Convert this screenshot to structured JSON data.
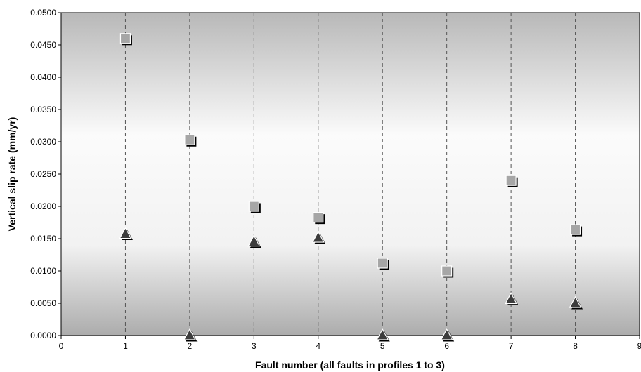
{
  "chart_data": {
    "type": "scatter",
    "title": "",
    "xlabel": "Fault number (all faults in profiles 1 to 3)",
    "ylabel": "Vertical slip rate (mm/yr)",
    "xlim": [
      0,
      9
    ],
    "ylim": [
      0,
      0.05
    ],
    "x_ticks": [
      "0",
      "1",
      "2",
      "3",
      "4",
      "5",
      "6",
      "7",
      "8",
      "9"
    ],
    "y_ticks": [
      "0.0000",
      "0.0050",
      "0.0100",
      "0.0150",
      "0.0200",
      "0.0250",
      "0.0300",
      "0.0350",
      "0.0400",
      "0.0450",
      "0.0500"
    ],
    "vertical_lines_at": [
      1,
      2,
      3,
      4,
      5,
      6,
      7,
      8
    ],
    "grid": false,
    "background": "vertical gray gradient",
    "series": [
      {
        "marker": "square",
        "color": "#a6a6a6",
        "x": [
          1,
          2,
          3,
          4,
          5,
          6,
          7,
          8
        ],
        "y": [
          0.046,
          0.0303,
          0.02,
          0.0183,
          0.0112,
          0.01,
          0.024,
          0.0164
        ]
      },
      {
        "marker": "triangle",
        "color": "#3c3c3c",
        "x": [
          1,
          2,
          3,
          4,
          5,
          6,
          7,
          8
        ],
        "y": [
          0.0157,
          0.0,
          0.0145,
          0.0151,
          0.0,
          0.0,
          0.0056,
          0.005
        ]
      }
    ]
  }
}
